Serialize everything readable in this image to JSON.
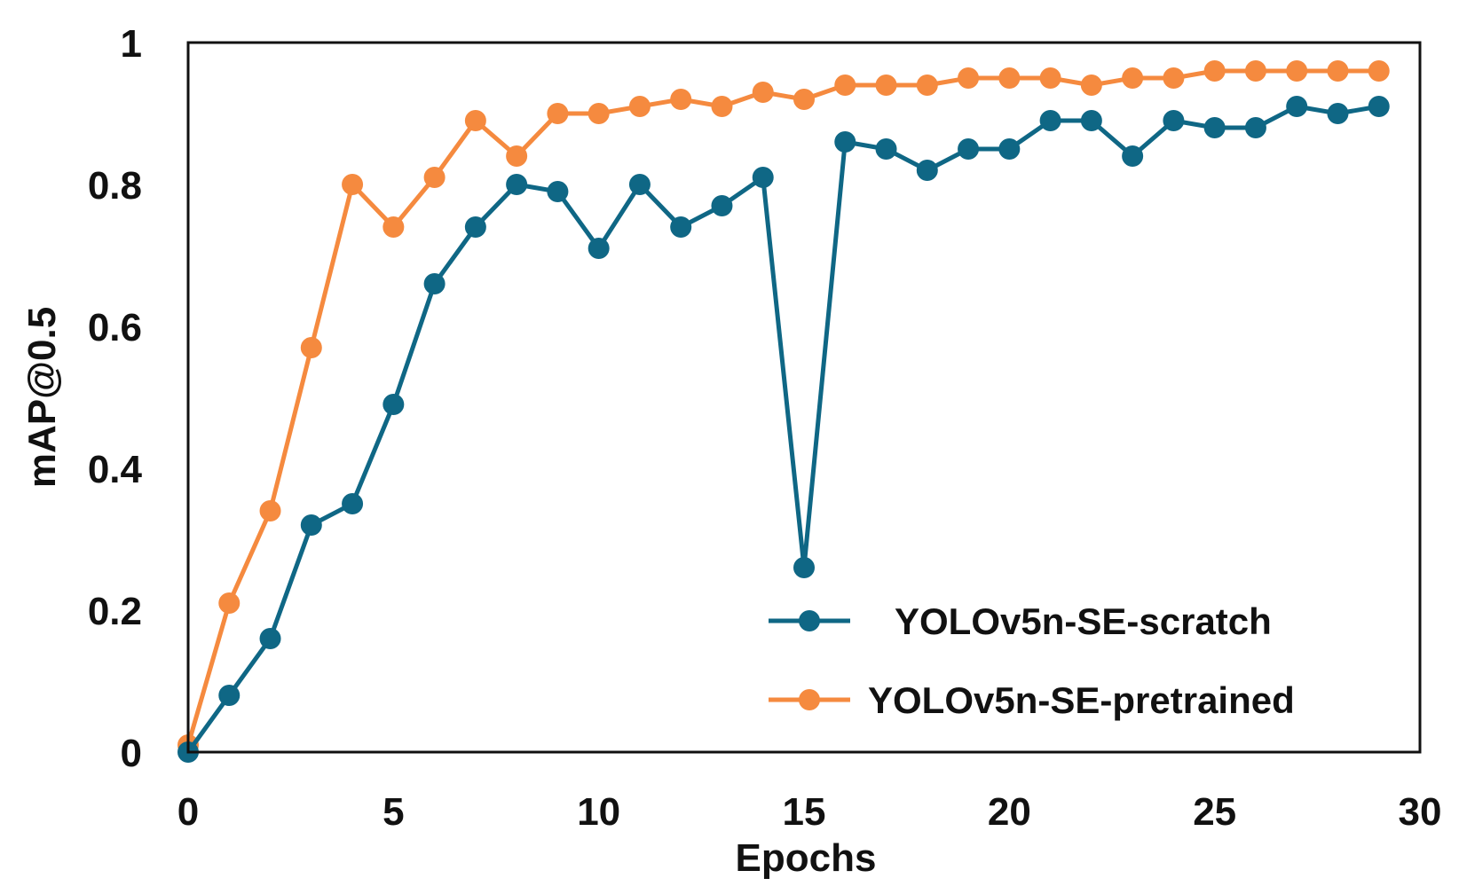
{
  "chart_data": {
    "type": "line",
    "title": "",
    "xlabel": "Epochs",
    "ylabel": "mAP@0.5",
    "xlim": [
      0,
      30
    ],
    "ylim": [
      0,
      1
    ],
    "xticks": [
      "0",
      "5",
      "10",
      "15",
      "20",
      "25",
      "30"
    ],
    "yticks": [
      "0",
      "0.2",
      "0.4",
      "0.6",
      "0.8",
      "1"
    ],
    "grid": false,
    "legend_position": "bottom-right",
    "x": [
      0,
      1,
      2,
      3,
      4,
      5,
      6,
      7,
      8,
      9,
      10,
      11,
      12,
      13,
      14,
      15,
      16,
      17,
      18,
      19,
      20,
      21,
      22,
      23,
      24,
      25,
      26,
      27,
      28,
      29
    ],
    "series": [
      {
        "name": "YOLOv5n-SE-scratch",
        "color": "#0f6785",
        "values": [
          0.0,
          0.08,
          0.16,
          0.32,
          0.35,
          0.49,
          0.66,
          0.74,
          0.8,
          0.79,
          0.71,
          0.8,
          0.74,
          0.77,
          0.81,
          0.26,
          0.86,
          0.85,
          0.82,
          0.85,
          0.85,
          0.89,
          0.89,
          0.84,
          0.89,
          0.88,
          0.88,
          0.91,
          0.9,
          0.91
        ]
      },
      {
        "name": "YOLOv5n-SE-pretrained",
        "color": "#f58a3f",
        "values": [
          0.01,
          0.21,
          0.34,
          0.57,
          0.8,
          0.74,
          0.81,
          0.89,
          0.84,
          0.9,
          0.9,
          0.91,
          0.92,
          0.91,
          0.93,
          0.92,
          0.94,
          0.94,
          0.94,
          0.95,
          0.95,
          0.95,
          0.94,
          0.95,
          0.95,
          0.96,
          0.96,
          0.96,
          0.96,
          0.96
        ]
      }
    ]
  }
}
